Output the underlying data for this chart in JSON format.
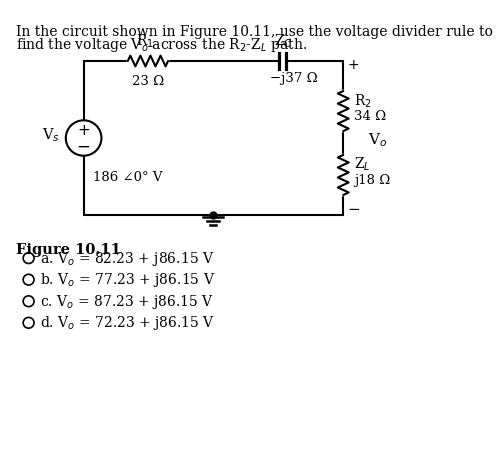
{
  "title_line1": "In the circuit shown in Figure 10.11, use the voltage divider rule to",
  "title_line2": "find the voltage V₀ across the R₂-Zₗ path.",
  "figure_label": "Figure 10.11",
  "choices": [
    "a. V₀ = 82.23 + j86.15 V",
    "b. V₀ = 77.23 + j86.15 V",
    "c. V₀ = 87.23 + j86.15 V",
    "d. V₀ = 72.23 + j86.15 V"
  ],
  "bg_color": "#ffffff",
  "text_color": "#000000"
}
